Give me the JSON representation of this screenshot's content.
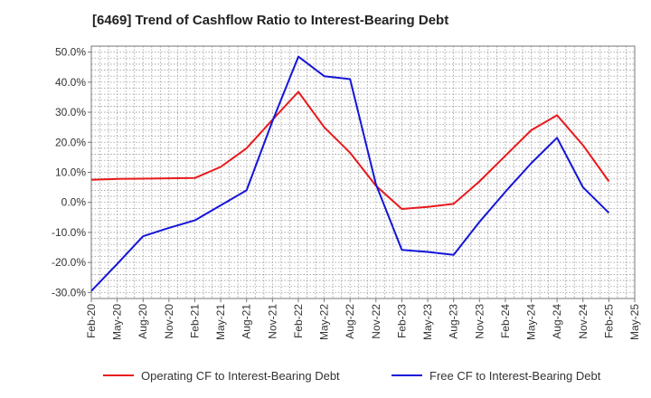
{
  "chart_data": {
    "type": "line",
    "title": "[6469]  Trend of Cashflow Ratio to Interest-Bearing Debt",
    "xlabel": "",
    "ylabel": "",
    "x": [
      "Feb-20",
      "May-20",
      "Aug-20",
      "Nov-20",
      "Feb-21",
      "May-21",
      "Aug-21",
      "Nov-21",
      "Feb-22",
      "May-22",
      "Aug-22",
      "Nov-22",
      "Feb-23",
      "May-23",
      "Aug-23",
      "Nov-23",
      "Feb-24",
      "May-24",
      "Aug-24",
      "Nov-24",
      "Feb-25",
      "May-25"
    ],
    "ylim": [
      -32,
      52
    ],
    "yticks": [
      50,
      40,
      30,
      20,
      10,
      0,
      -10,
      -20,
      -30
    ],
    "ytick_labels": [
      "50.0%",
      "40.0%",
      "30.0%",
      "20.0%",
      "10.0%",
      "0.0%",
      "-10.0%",
      "-20.0%",
      "-30.0%"
    ],
    "grid": true,
    "legend_position": "bottom",
    "series": [
      {
        "name": "Operating CF to Interest-Bearing Debt",
        "color": "#e8191c",
        "values": [
          7.5,
          7.8,
          7.9,
          8.0,
          8.1,
          11.8,
          18.0,
          27.5,
          36.8,
          25.0,
          16.5,
          5.5,
          -2.2,
          -1.5,
          -0.5,
          7.0,
          15.5,
          24.0,
          29.0,
          19.0,
          7.0,
          null
        ]
      },
      {
        "name": "Free CF to Interest-Bearing Debt",
        "color": "#1515d8",
        "values": [
          -29.5,
          -20.5,
          -11.3,
          -8.5,
          -6.0,
          -1.0,
          4.0,
          27.0,
          48.5,
          42.0,
          41.0,
          6.0,
          -15.8,
          -16.5,
          -17.5,
          -6.5,
          3.5,
          13.0,
          21.5,
          5.0,
          -3.5,
          null
        ]
      }
    ]
  }
}
